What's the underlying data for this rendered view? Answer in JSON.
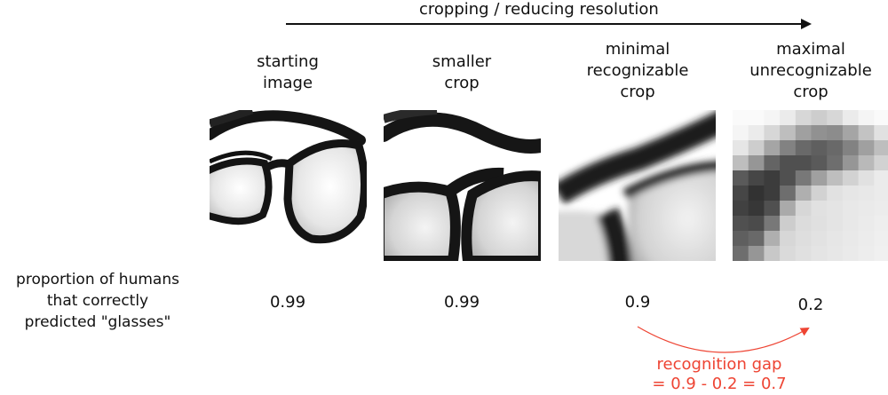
{
  "header": {
    "process_label": "cropping / reducing resolution"
  },
  "columns": [
    {
      "label": "starting\nimage",
      "value": "0.99"
    },
    {
      "label": "smaller\ncrop",
      "value": "0.99"
    },
    {
      "label": "minimal\nrecognizable\ncrop",
      "value": "0.9"
    },
    {
      "label": "maximal\nunrecognizable\ncrop",
      "value": "0.2"
    }
  ],
  "row_label": "proportion of humans\nthat correctly\npredicted \"glasses\"",
  "gap": {
    "text": "recognition gap\n= 0.9 - 0.2 = 0.7"
  },
  "colors": {
    "accent": "#ee4433",
    "ink": "#111111"
  }
}
